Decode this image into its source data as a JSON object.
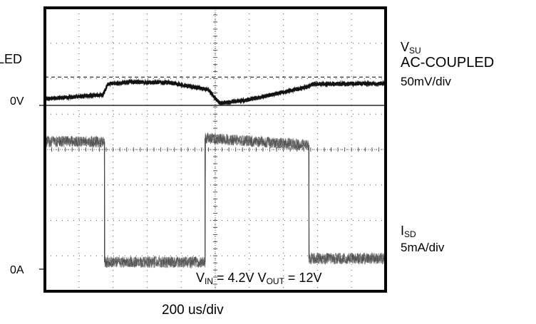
{
  "chart_data": {
    "type": "line",
    "title": "",
    "x_scale": "200 us/div",
    "x_divisions": 10,
    "y_divisions": 8,
    "grid": true,
    "series": [
      {
        "name": "V_SU",
        "coupling": "AC-COUPLED",
        "scale": "50mV/div",
        "zero_label": "0V",
        "x_div": [
          0.0,
          1.7,
          1.85,
          2.5,
          3.7,
          4.8,
          5.0,
          5.15,
          6.0,
          7.7,
          7.85,
          10.0
        ],
        "y_div_rel_zero": [
          0.18,
          0.3,
          0.6,
          0.66,
          0.64,
          0.44,
          0.2,
          0.06,
          0.16,
          0.52,
          0.6,
          0.62
        ],
        "noise_div": 0.05,
        "color": "#111111"
      },
      {
        "name": "I_SD",
        "scale": "5mA/div",
        "zero_label": "0A",
        "x_div": [
          0.0,
          1.75,
          1.75,
          4.7,
          4.7,
          7.75,
          7.75,
          10.0
        ],
        "y_div_rel_zero": [
          3.6,
          3.6,
          0.2,
          0.2,
          3.7,
          3.5,
          0.3,
          0.3
        ],
        "noise_div": 0.16,
        "color": "#444444"
      }
    ],
    "annotation": {
      "vin_label": "V",
      "vin_sub": "IN",
      "vin_value": " = 4.2V ",
      "vout_label": "V",
      "vout_sub": "OUT",
      "vout_value": " = 12V"
    },
    "dashed_reference": {
      "series": "V_SU",
      "y_div_rel_zero": 0.8
    }
  },
  "labels": {
    "left_top_partial": "LED",
    "ch1_zero": "0V",
    "ch2_zero": "0A",
    "ch1_name_main": "V",
    "ch1_name_sub": "SU",
    "ch1_coupling": "AC-COUPLED",
    "ch1_scale": "50mV/div",
    "ch2_name_main": "I",
    "ch2_name_sub": "SD",
    "ch2_scale": "5mA/div",
    "timebase": "200 us/div"
  }
}
